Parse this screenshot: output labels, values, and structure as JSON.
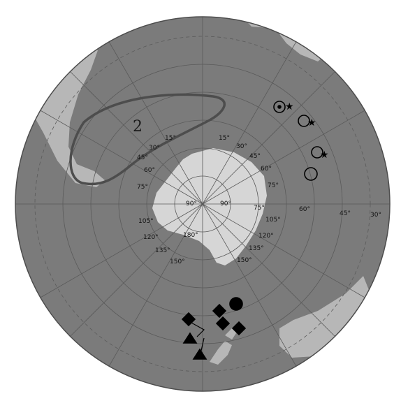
{
  "map": {
    "projection": "south-polar-orthographic",
    "colors": {
      "ocean": "#7b7b7b",
      "land": "#b7b7b7",
      "antarctica": "#d6d6d6",
      "graticule": "#5a5a5a",
      "outline": "#4d4d4d",
      "marker": "#000000"
    },
    "region_label": "2",
    "lat_labels_upper": [
      "15°",
      "30°",
      "45°",
      "60°",
      "75°",
      "15°",
      "30°",
      "45°",
      "60°",
      "75°"
    ],
    "center_labels": [
      "90°",
      "90°"
    ],
    "lat_labels_lower": [
      "75°",
      "105°",
      "120°",
      "135°",
      "150°",
      "180°",
      "105°",
      "120°",
      "135°",
      "150°"
    ],
    "rim_labels": [
      "60°",
      "45°",
      "30°"
    ],
    "marker_groups": [
      {
        "symbol": "circle-star",
        "count": 3
      },
      {
        "symbol": "open-circle",
        "count": 1
      },
      {
        "symbol": "filled-diamond",
        "count": 5
      },
      {
        "symbol": "filled-circle",
        "count": 1
      },
      {
        "symbol": "filled-triangle",
        "count": 2
      }
    ]
  }
}
